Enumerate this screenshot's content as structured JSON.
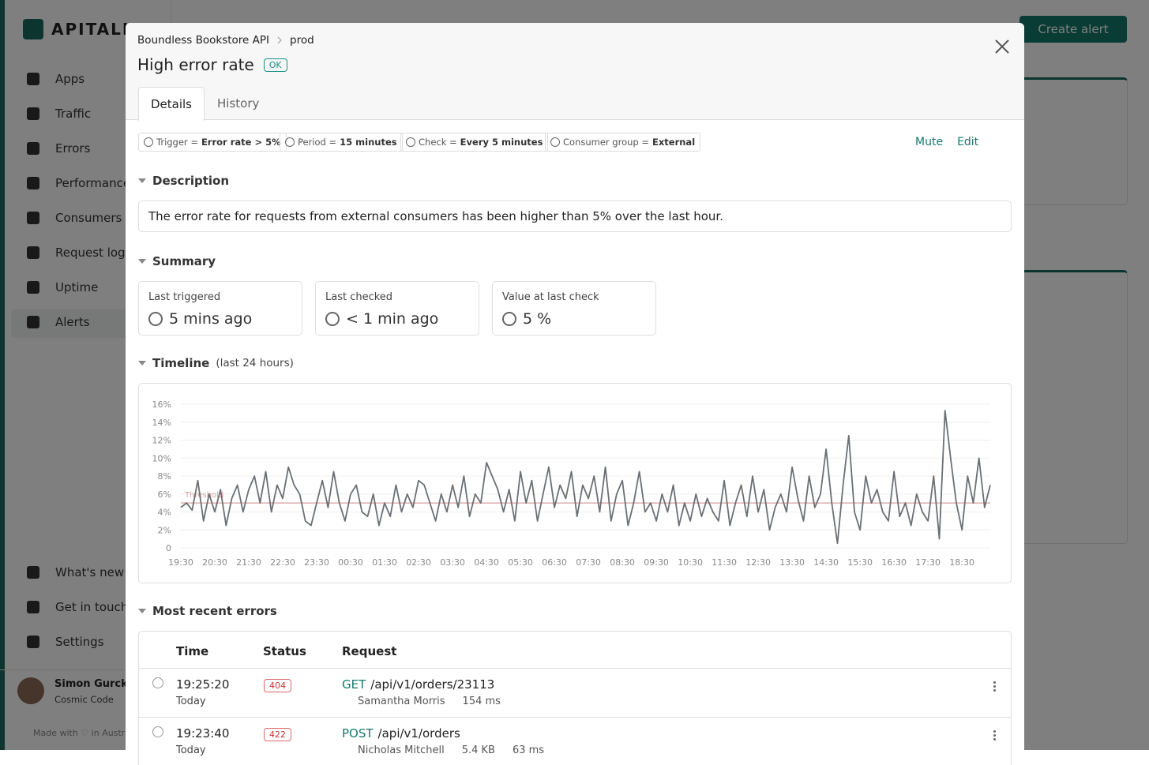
{
  "sidebar": {
    "brand": "APITALLY",
    "nav": [
      "Apps",
      "Traffic",
      "Errors",
      "Performance",
      "Consumers",
      "Request logs",
      "Uptime",
      "Alerts"
    ],
    "bottom": [
      "What's new",
      "Get in touch",
      "Settings"
    ],
    "user": {
      "name": "Simon Gurcke",
      "org": "Cosmic Code"
    },
    "footer": "Made with ♡ in Australia"
  },
  "background": {
    "create_button": "Create alert"
  },
  "modal": {
    "breadcrumb": [
      "Boundless Bookstore API",
      "prod"
    ],
    "title": "High error rate",
    "status": "OK",
    "tabs": [
      "Details",
      "History"
    ],
    "filters": [
      {
        "label": "Trigger =",
        "value": "Error rate > 5%"
      },
      {
        "label": "Period =",
        "value": "15 minutes"
      },
      {
        "label": "Check =",
        "value": "Every 5 minutes"
      },
      {
        "label": "Consumer group =",
        "value": "External"
      }
    ],
    "actions": [
      "Mute",
      "Edit"
    ],
    "description_heading": "Description",
    "description": "The error rate for requests from external consumers has been higher than 5% over the last hour.",
    "summary_heading": "Summary",
    "summary": [
      {
        "label": "Last triggered",
        "value": "5 mins ago"
      },
      {
        "label": "Last checked",
        "value": "< 1 min ago"
      },
      {
        "label": "Value at last check",
        "value": "5 %"
      }
    ],
    "timeline_heading": "Timeline",
    "errors_heading": "Most recent errors",
    "table": {
      "headers": [
        "Time",
        "Status",
        "Request"
      ],
      "rows": [
        {
          "time": "19:25:20",
          "day": "Today",
          "status": "404",
          "method": "GET",
          "path": "/api/v1/orders/23113",
          "consumer": "Samantha Morris",
          "meta": [
            "154 ms"
          ]
        },
        {
          "time": "19:23:40",
          "day": "Today",
          "status": "422",
          "method": "POST",
          "path": "/api/v1/orders",
          "consumer": "Nicholas Mitchell",
          "meta": [
            "5.4 KB",
            "63 ms"
          ]
        }
      ]
    }
  },
  "chart_data": {
    "type": "line",
    "subtitle": "(last 24 hours)",
    "categories": [
      "19:30",
      null,
      null,
      null,
      null,
      null,
      "20:30",
      null,
      null,
      null,
      null,
      null,
      "21:30",
      null,
      null,
      null,
      null,
      null,
      "22:30",
      null,
      null,
      null,
      null,
      null,
      "23:30",
      null,
      null,
      null,
      null,
      null,
      "00:30",
      null,
      null,
      null,
      null,
      null,
      "01:30",
      null,
      null,
      null,
      null,
      null,
      "02:30",
      null,
      null,
      null,
      null,
      null,
      "03:30",
      null,
      null,
      null,
      null,
      null,
      "04:30",
      null,
      null,
      null,
      null,
      null,
      "05:30",
      null,
      null,
      null,
      null,
      null,
      "06:30",
      null,
      null,
      null,
      null,
      null,
      "07:30",
      null,
      null,
      null,
      null,
      null,
      "08:30",
      null,
      null,
      null,
      null,
      null,
      "09:30",
      null,
      null,
      null,
      null,
      null,
      "10:30",
      null,
      null,
      null,
      null,
      null,
      "11:30",
      null,
      null,
      null,
      null,
      null,
      "12:30",
      null,
      null,
      null,
      null,
      null,
      "13:30",
      null,
      null,
      null,
      null,
      null,
      "14:30",
      null,
      null,
      null,
      null,
      null,
      "15:30",
      null,
      null,
      null,
      null,
      null,
      "16:30",
      null,
      null,
      null,
      null,
      null,
      "17:30",
      null,
      null,
      null,
      null,
      null,
      "18:30",
      null,
      null,
      null,
      null,
      null
    ],
    "series": [
      {
        "name": "Error rate",
        "color": "#6b7075",
        "values": [
          4.5,
          5,
          4.2,
          7.5,
          3,
          6,
          4,
          6.5,
          2.5,
          5.5,
          7,
          4,
          6.5,
          8,
          5,
          8.5,
          4,
          7,
          5.5,
          9,
          7,
          6,
          3,
          2.5,
          5,
          7.5,
          4.5,
          8.5,
          5,
          3,
          6,
          7,
          4,
          3.5,
          6,
          2.5,
          5,
          3.5,
          7,
          4,
          6,
          4.5,
          7.5,
          7,
          5,
          3,
          6,
          4,
          7,
          4.5,
          8,
          3.5,
          6,
          5,
          9.5,
          8,
          6.5,
          4,
          6.5,
          3,
          8.5,
          5,
          7.5,
          3,
          6,
          9,
          4.5,
          7,
          5.5,
          8.5,
          3.5,
          7,
          5.5,
          8,
          4,
          9,
          3,
          6,
          7.5,
          2.5,
          5,
          8.5,
          4,
          5,
          3,
          6,
          4,
          7,
          2.5,
          5,
          3,
          6,
          3.5,
          5.5,
          4,
          3,
          7.5,
          2.5,
          5,
          7,
          3.5,
          8,
          4,
          6.5,
          2,
          4.5,
          6,
          4,
          9,
          5.5,
          3,
          8,
          4.5,
          6,
          11,
          5,
          0.5,
          7,
          12.5,
          4,
          2,
          8,
          5,
          6.5,
          4,
          3,
          8.5,
          3.5,
          5,
          2.5,
          6,
          4,
          3,
          8,
          1,
          15.3,
          10,
          5,
          2,
          8,
          5,
          10,
          4.5,
          7
        ]
      }
    ],
    "threshold": {
      "value": 5,
      "label": "Threshold",
      "color": "#d9a0a0"
    },
    "ylim": [
      0,
      16
    ],
    "yticks": [
      0,
      {
        "value": 2,
        "label": "2%"
      },
      {
        "value": 4,
        "label": "4%"
      },
      {
        "value": 6,
        "label": "6%"
      },
      {
        "value": 8,
        "label": "8%"
      },
      {
        "value": 10,
        "label": "10%"
      },
      {
        "value": 12,
        "label": "12%"
      },
      {
        "value": 14,
        "label": "14%"
      },
      {
        "value": 16,
        "label": "16%"
      }
    ],
    "grid": true
  }
}
